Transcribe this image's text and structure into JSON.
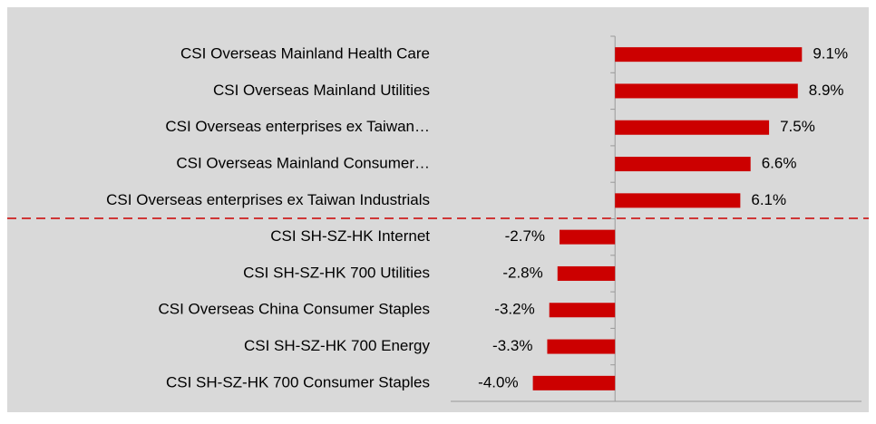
{
  "chart_data": {
    "type": "bar",
    "orientation": "horizontal",
    "categories": [
      "CSI Overseas Mainland Health Care",
      "CSI Overseas Mainland Utilities",
      "CSI Overseas enterprises ex Taiwan…",
      "CSI Overseas Mainland Consumer…",
      "CSI Overseas enterprises ex Taiwan Industrials",
      "CSI SH-SZ-HK Internet",
      "CSI SH-SZ-HK 700 Utilities",
      "CSI Overseas China Consumer Staples",
      "CSI SH-SZ-HK 700 Energy",
      "CSI SH-SZ-HK 700 Consumer Staples"
    ],
    "values": [
      9.1,
      8.9,
      7.5,
      6.6,
      6.1,
      -2.7,
      -2.8,
      -3.2,
      -3.3,
      -4.0
    ],
    "value_labels": [
      "9.1%",
      "8.9%",
      "7.5%",
      "6.6%",
      "6.1%",
      "-2.7%",
      "-2.8%",
      "-3.2%",
      "-3.3%",
      "-4.0%"
    ],
    "color": "#cc0000",
    "xlim": [
      -8,
      12
    ]
  }
}
